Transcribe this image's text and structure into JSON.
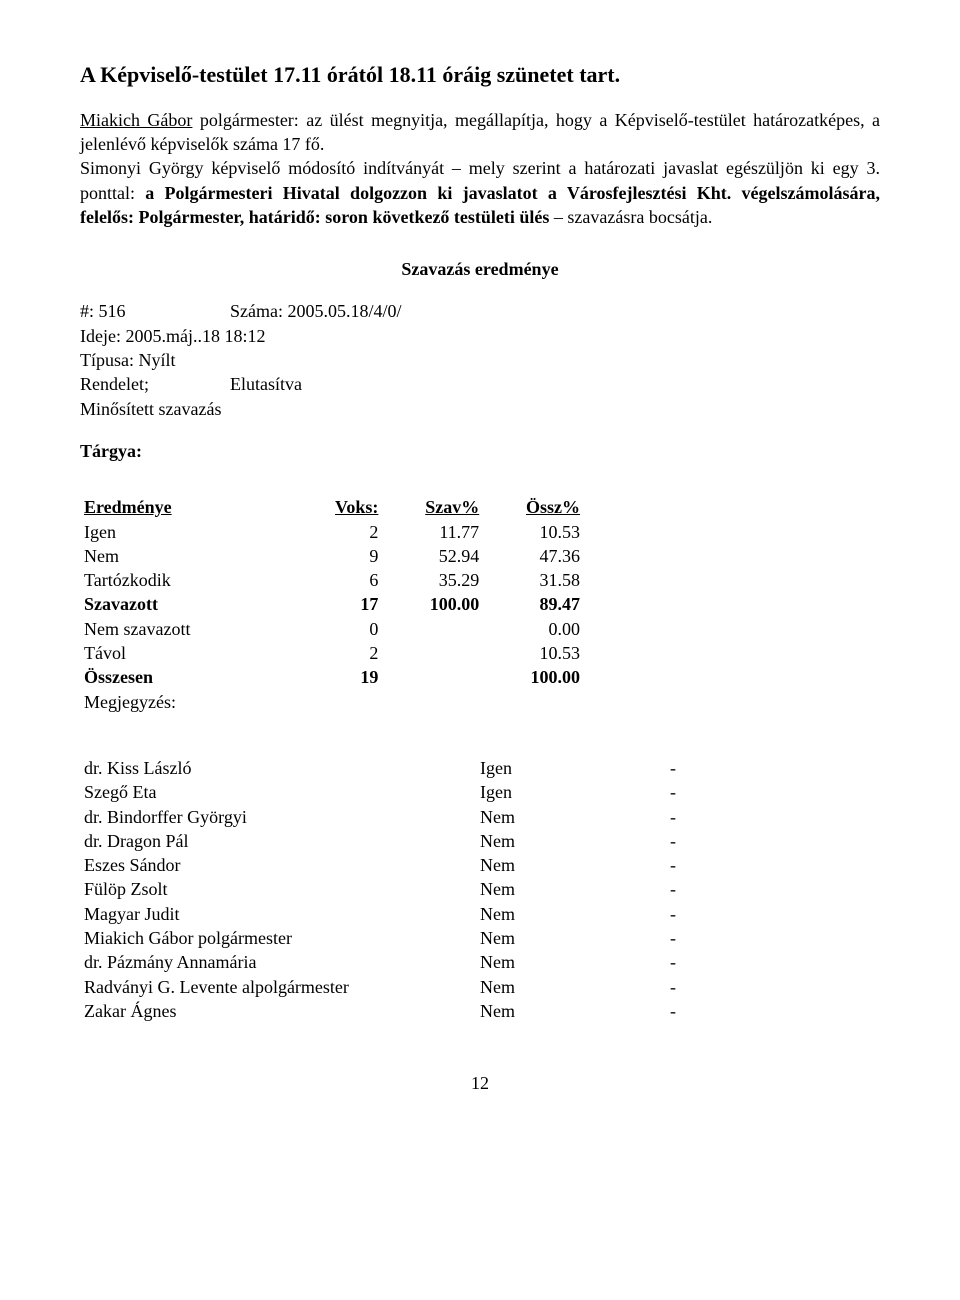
{
  "title": "A Képviselő-testület 17.11 órától 18.11 óráig szünetet tart.",
  "para": {
    "p1_name": "Miakich Gábor",
    "p1_rest": " polgármester: az ülést megnyitja, megállapítja, hogy a Képviselő-testület határozatképes, a jelenlévő képviselők száma 17 fő.",
    "p2a": "Simonyi György képviselő módosító indítványát – mely szerint a határozati javaslat egészüljön ki egy 3. ponttal: ",
    "p2b": "a Polgármesteri Hivatal dolgozzon ki javaslatot a Városfejlesztési Kht. végelszámolására, felelős: Polgármester, határidő: soron következő testületi ülés",
    "p2c": " – szavazásra bocsátja."
  },
  "result_heading": "Szavazás eredménye",
  "meta": {
    "l1a": "#: 516",
    "l1b": "Száma: 2005.05.18/4/0/",
    "l2": "Ideje: 2005.máj..18 18:12",
    "l3": "Típusa: Nyílt",
    "l4a": "Rendelet;",
    "l4b": "Elutasítva",
    "l5": "Minősített szavazás"
  },
  "targya": "Tárgya:",
  "table": {
    "headers": [
      "Eredménye",
      "Voks:",
      "Szav%",
      "Össz%"
    ],
    "rows": [
      {
        "label": "Igen",
        "voks": "2",
        "szav": "11.77",
        "ossz": "10.53",
        "bold": false
      },
      {
        "label": "Nem",
        "voks": "9",
        "szav": "52.94",
        "ossz": "47.36",
        "bold": false
      },
      {
        "label": "Tartózkodik",
        "voks": "6",
        "szav": "35.29",
        "ossz": "31.58",
        "bold": false
      },
      {
        "label": "Szavazott",
        "voks": "17",
        "szav": "100.00",
        "ossz": "89.47",
        "bold": true
      },
      {
        "label": "Nem szavazott",
        "voks": "0",
        "szav": "",
        "ossz": "0.00",
        "bold": false
      },
      {
        "label": "Távol",
        "voks": "2",
        "szav": "",
        "ossz": "10.53",
        "bold": false
      },
      {
        "label": "Összesen",
        "voks": "19",
        "szav": "",
        "ossz": "100.00",
        "bold": true
      }
    ],
    "note": "Megjegyzés:"
  },
  "votes": [
    {
      "name": "dr. Kiss László",
      "vote": "Igen",
      "dash": "-"
    },
    {
      "name": "Szegő Eta",
      "vote": "Igen",
      "dash": "-"
    },
    {
      "name": "dr. Bindorffer Györgyi",
      "vote": "Nem",
      "dash": "-"
    },
    {
      "name": "dr. Dragon Pál",
      "vote": "Nem",
      "dash": "-"
    },
    {
      "name": "Eszes Sándor",
      "vote": "Nem",
      "dash": "-"
    },
    {
      "name": "Fülöp Zsolt",
      "vote": "Nem",
      "dash": "-"
    },
    {
      "name": "Magyar Judit",
      "vote": "Nem",
      "dash": "-"
    },
    {
      "name": "Miakich Gábor polgármester",
      "vote": "Nem",
      "dash": "-"
    },
    {
      "name": "dr. Pázmány Annamária",
      "vote": "Nem",
      "dash": "-"
    },
    {
      "name": "Radványi G. Levente alpolgármester",
      "vote": "Nem",
      "dash": "-"
    },
    {
      "name": "Zakar Ágnes",
      "vote": "Nem",
      "dash": "-"
    }
  ],
  "pagenum": "12"
}
